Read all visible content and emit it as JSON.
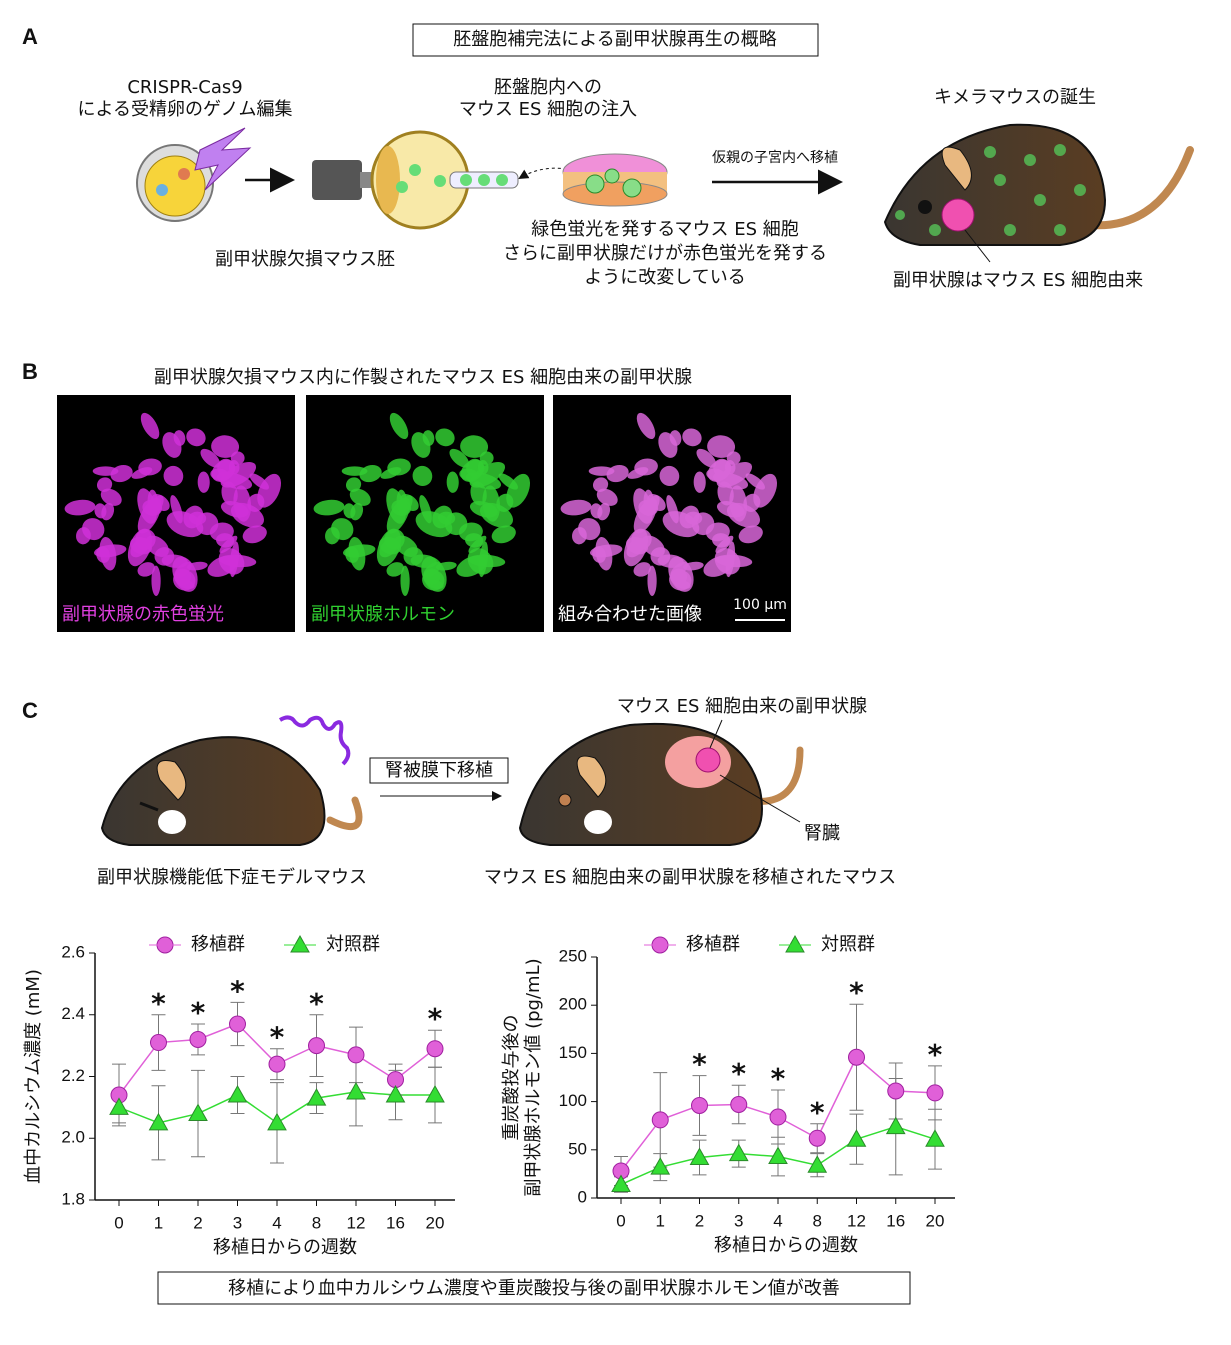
{
  "panels": {
    "a": {
      "letter": "A",
      "title": "胚盤胞補完法による副甲状腺再生の概略",
      "step1": [
        "CRISPR-Cas9",
        "による受精卵のゲノム編集"
      ],
      "embryo_label": "副甲状腺欠損マウス胚",
      "step2": [
        "胚盤胞内への",
        "マウス ES 細胞の注入"
      ],
      "es_note": [
        "緑色蛍光を発するマウス ES 細胞",
        "さらに副甲状腺だけが赤色蛍光を発する",
        "ように改変している"
      ],
      "transfer": "仮親の子宮内へ移植",
      "birth": "キメラマウスの誕生",
      "origin": "副甲状腺はマウス ES 細胞由来"
    },
    "b": {
      "letter": "B",
      "title": "副甲状腺欠損マウス内に作製されたマウス ES 細胞由来の副甲状腺",
      "images": [
        "副甲状腺の赤色蛍光",
        "副甲状腺ホルモン",
        "組み合わせた画像"
      ],
      "scale": "100 µm"
    },
    "c": {
      "letter": "C",
      "model": "副甲状腺機能低下症モデルマウス",
      "procedure": "腎被膜下移植",
      "graft": "マウス ES 細胞由来の副甲状腺",
      "kidney": "腎臓",
      "result_mouse": "マウス ES 細胞由来の副甲状腺を移植されたマウス",
      "conclusion": "移植により血中カルシウム濃度や重炭酸投与後の副甲状腺ホルモン値が改善"
    }
  },
  "chart_data": [
    {
      "type": "line",
      "ylabel": [
        "血中カルシウム濃度 (mM)"
      ],
      "xlabel": "移植日からの週数",
      "categories": [
        "0",
        "1",
        "2",
        "3",
        "4",
        "8",
        "12",
        "16",
        "20"
      ],
      "ylim": [
        1.8,
        2.6
      ],
      "yticks": [
        1.8,
        {
          "value": 2,
          "label": "2.0"
        },
        2.2,
        2.4,
        2.6
      ],
      "series": [
        {
          "name": "移植群",
          "color": "#e060d8",
          "marker": "circle",
          "values": [
            2.14,
            2.31,
            2.32,
            2.37,
            2.24,
            2.3,
            2.27,
            2.19,
            2.29
          ],
          "errors": [
            0.1,
            0.09,
            0.05,
            0.07,
            0.05,
            0.1,
            0.09,
            0.05,
            0.06
          ]
        },
        {
          "name": "対照群",
          "color": "#33dd33",
          "marker": "triangle",
          "values": [
            2.1,
            2.05,
            2.08,
            2.14,
            2.05,
            2.13,
            2.15,
            2.14,
            2.14
          ],
          "errors": [
            0.05,
            0.12,
            0.14,
            0.06,
            0.13,
            0.05,
            0.11,
            0.08,
            0.09
          ]
        }
      ],
      "significance_label": "*",
      "significant": [
        false,
        true,
        true,
        true,
        true,
        true,
        false,
        false,
        true
      ]
    },
    {
      "type": "line",
      "ylabel": [
        "重炭酸投与後の",
        "副甲状腺ホルモン値 (pg/mL)"
      ],
      "xlabel": "移植日からの週数",
      "categories": [
        "0",
        "1",
        "2",
        "3",
        "4",
        "8",
        "12",
        "16",
        "20"
      ],
      "ylim": [
        0,
        250
      ],
      "yticks": [
        0,
        50,
        100,
        150,
        200,
        250
      ],
      "series": [
        {
          "name": "移植群",
          "color": "#e060d8",
          "marker": "circle",
          "values": [
            28,
            81,
            96,
            97,
            84,
            62,
            146,
            111,
            109
          ],
          "errors": [
            15,
            49,
            31,
            20,
            28,
            15,
            55,
            29,
            28
          ]
        },
        {
          "name": "対照群",
          "color": "#33dd33",
          "marker": "triangle",
          "values": [
            14,
            32,
            42,
            46,
            43,
            34,
            61,
            74,
            61
          ],
          "errors": [
            8,
            14,
            18,
            14,
            20,
            12,
            26,
            50,
            31
          ]
        }
      ],
      "significance_label": "*",
      "significant": [
        false,
        false,
        true,
        true,
        true,
        true,
        true,
        false,
        true
      ]
    }
  ]
}
